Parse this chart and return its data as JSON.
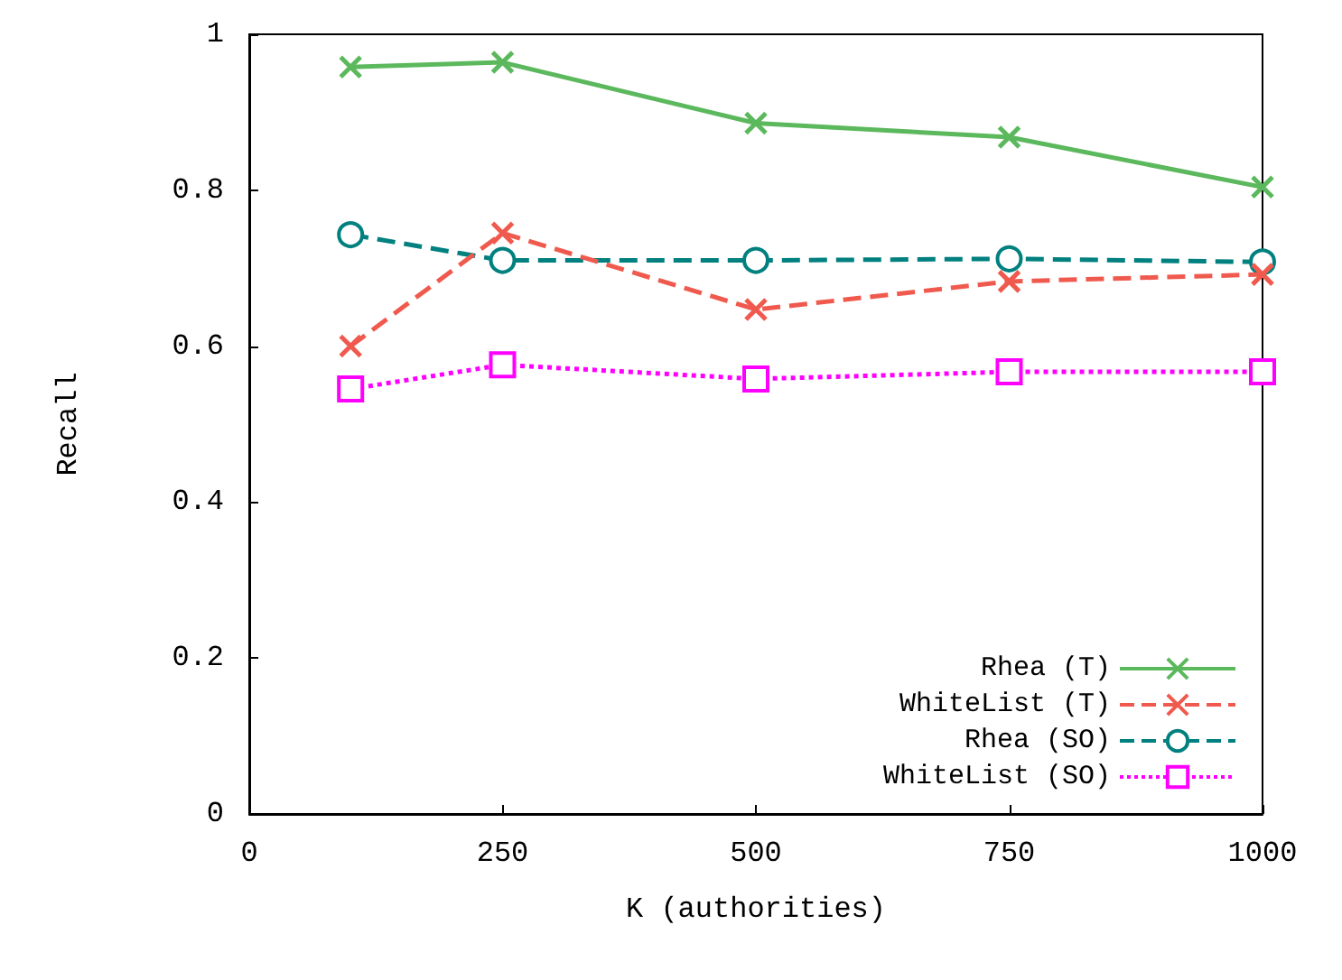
{
  "chart_data": {
    "type": "line",
    "xlabel": "K (authorities)",
    "ylabel": "Recall",
    "x": [
      100,
      250,
      500,
      750,
      1000
    ],
    "series": [
      {
        "name": "Rhea (T)",
        "color": "#5cb85c",
        "marker": "cross",
        "line_style": "solid",
        "values": [
          0.958,
          0.964,
          0.886,
          0.868,
          0.804
        ]
      },
      {
        "name": "WhiteList (T)",
        "color": "#f05a4e",
        "marker": "cross",
        "line_style": "dashed",
        "values": [
          0.6,
          0.745,
          0.647,
          0.683,
          0.692
        ]
      },
      {
        "name": "Rhea (SO)",
        "color": "#00807f",
        "marker": "circle",
        "line_style": "dashed",
        "values": [
          0.743,
          0.71,
          0.71,
          0.712,
          0.708
        ]
      },
      {
        "name": "WhiteList (SO)",
        "color": "#ff00ff",
        "marker": "square",
        "line_style": "dotted",
        "values": [
          0.545,
          0.576,
          0.558,
          0.567,
          0.567
        ]
      }
    ],
    "xlim": [
      0,
      1000
    ],
    "xticks": [
      0,
      250,
      500,
      750,
      1000
    ],
    "ylim": [
      0,
      1
    ],
    "yticks": [
      0,
      0.2,
      0.4,
      0.6,
      0.8,
      1
    ],
    "grid": false,
    "legend": "bottom right"
  }
}
